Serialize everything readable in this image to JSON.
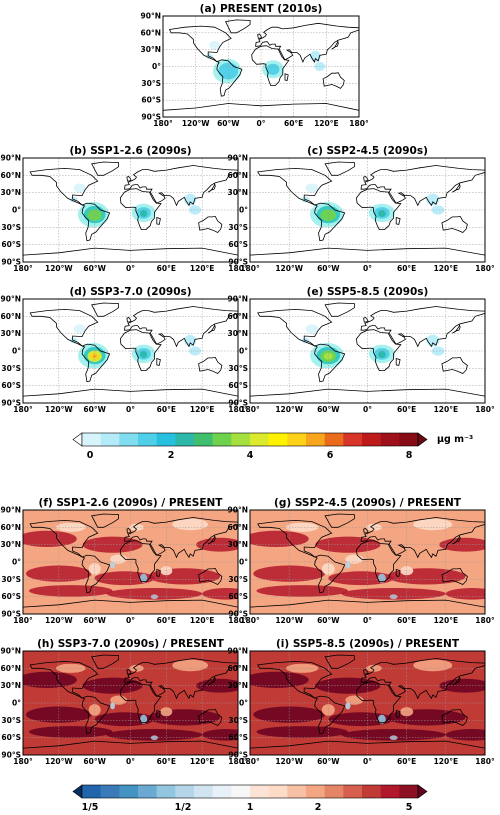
{
  "panels": [
    {
      "id": "a",
      "title": "(a) PRESENT (2010s)",
      "kind": "abs",
      "level": 0.0
    },
    {
      "id": "b",
      "title": "(b) SSP1-2.6 (2090s)",
      "kind": "abs",
      "level": 0.55
    },
    {
      "id": "c",
      "title": "(c) SSP2-4.5 (2090s)",
      "kind": "abs",
      "level": 0.6
    },
    {
      "id": "d",
      "title": "(d) SSP3-7.0 (2090s)",
      "kind": "abs",
      "level": 1.0
    },
    {
      "id": "e",
      "title": "(e) SSP5-8.5 (2090s)",
      "kind": "abs",
      "level": 0.8
    },
    {
      "id": "f",
      "title": "(f) SSP1-2.6 (2090s) / PRESENT",
      "kind": "ratio",
      "level": 0.55
    },
    {
      "id": "g",
      "title": "(g) SSP2-4.5 (2090s) / PRESENT",
      "kind": "ratio",
      "level": 0.7
    },
    {
      "id": "h",
      "title": "(h) SSP3-7.0 (2090s) / PRESENT",
      "kind": "ratio",
      "level": 1.0
    },
    {
      "id": "i",
      "title": "(i) SSP5-8.5 (2090s) / PRESENT",
      "kind": "ratio",
      "level": 0.9
    }
  ],
  "axes": {
    "lat_ticks": [
      "90°N",
      "60°N",
      "30°N",
      "0°",
      "30°S",
      "60°S",
      "90°S"
    ],
    "lon_ticks": [
      "180°",
      "120°W",
      "60°W",
      "0°",
      "60°E",
      "120°E",
      "180°"
    ]
  },
  "colorbar_abs": {
    "ticks": [
      "0",
      "2",
      "4",
      "6",
      "8"
    ],
    "units": "μg m⁻³",
    "colors": [
      "#ffffff",
      "#d8f4fb",
      "#b3ebf8",
      "#80dcef",
      "#4fcfe8",
      "#28c0e0",
      "#2db7a8",
      "#3fbf6e",
      "#6fd24d",
      "#a6e03f",
      "#dbea2f",
      "#fff200",
      "#ffd21a",
      "#f6a51c",
      "#ea6b1e",
      "#d73527",
      "#bd1a1a",
      "#a0101a",
      "#850a14",
      "#6a0710"
    ]
  },
  "colorbar_ratio": {
    "ticks": [
      "1/5",
      "1/2",
      "1",
      "2",
      "5"
    ],
    "colors": [
      "#053061",
      "#2166ac",
      "#3a7ab8",
      "#4393c3",
      "#6aaad2",
      "#92c5de",
      "#b5d6e8",
      "#d1e5f0",
      "#e8f1f7",
      "#f7f7f7",
      "#fbe3d6",
      "#fddbc7",
      "#f7c0a4",
      "#f4a582",
      "#e48566",
      "#d6604d",
      "#c03a36",
      "#b2182b",
      "#8c0f22",
      "#67001f"
    ]
  }
}
